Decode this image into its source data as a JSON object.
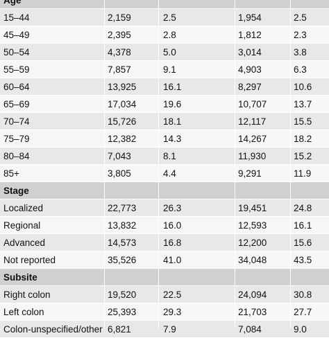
{
  "table": {
    "top_section_partial": "Age",
    "sections": [
      {
        "rows": [
          [
            "15–44",
            "2,159",
            "2.5",
            "1,954",
            "2.5"
          ],
          [
            "45–49",
            "2,395",
            "2.8",
            "1,812",
            "2.3"
          ],
          [
            "50–54",
            "4,378",
            "5.0",
            "3,014",
            "3.8"
          ],
          [
            "55–59",
            "7,857",
            "9.1",
            "4,903",
            "6.3"
          ],
          [
            "60–64",
            "13,925",
            "16.1",
            "8,297",
            "10.6"
          ],
          [
            "65–69",
            "17,034",
            "19.6",
            "10,707",
            "13.7"
          ],
          [
            "70–74",
            "15,726",
            "18.1",
            "12,117",
            "15.5"
          ],
          [
            "75–79",
            "12,382",
            "14.3",
            "14,267",
            "18.2"
          ],
          [
            "80–84",
            "7,043",
            "8.1",
            "11,930",
            "15.2"
          ],
          [
            "85+",
            "3,805",
            "4.4",
            "9,291",
            "11.9"
          ]
        ]
      },
      {
        "title": "Stage",
        "rows": [
          [
            "Localized",
            "22,773",
            "26.3",
            "19,451",
            "24.8"
          ],
          [
            "Regional",
            "13,832",
            "16.0",
            "12,593",
            "16.1"
          ],
          [
            "Advanced",
            "14,573",
            "16.8",
            "12,200",
            "15.6"
          ],
          [
            "Not reported",
            "35,526",
            "41.0",
            "34,048",
            "43.5"
          ]
        ]
      },
      {
        "title": "Subsite",
        "rows": [
          [
            "Right colon",
            "19,520",
            "22.5",
            "24,094",
            "30.8"
          ],
          [
            "Left colon",
            "25,393",
            "29.3",
            "21,703",
            "27.7"
          ],
          [
            "Colon-unspecified/other",
            "6,821",
            "7.9",
            "7,084",
            "9.0"
          ]
        ]
      }
    ]
  }
}
